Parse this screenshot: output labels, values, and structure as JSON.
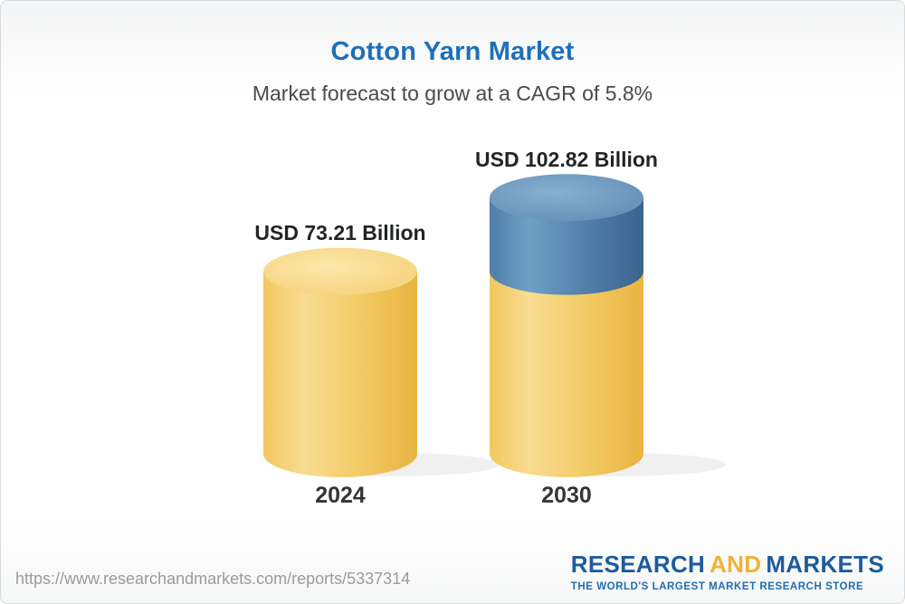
{
  "header": {
    "title": "Cotton Yarn Market",
    "subtitle": "Market forecast to grow at a CAGR of 5.8%"
  },
  "chart_data": {
    "type": "bar",
    "variant": "3d-cylinder",
    "categories": [
      "2024",
      "2030"
    ],
    "values": [
      73.21,
      102.82
    ],
    "value_labels": [
      "USD 73.21 Billion",
      "USD 102.82 Billion"
    ],
    "unit": "USD Billion",
    "ylim": [
      0,
      110
    ],
    "legend": "none",
    "grid": false,
    "colors": {
      "base_segment": "#F2C45C",
      "growth_segment": "#4C7FA8"
    }
  },
  "footer": {
    "url": "https://www.researchandmarkets.com/reports/5337314",
    "logo": {
      "part1": "RESEARCH",
      "part2": "AND",
      "part3": "MARKETS",
      "tagline": "THE WORLD'S LARGEST MARKET RESEARCH STORE"
    }
  }
}
